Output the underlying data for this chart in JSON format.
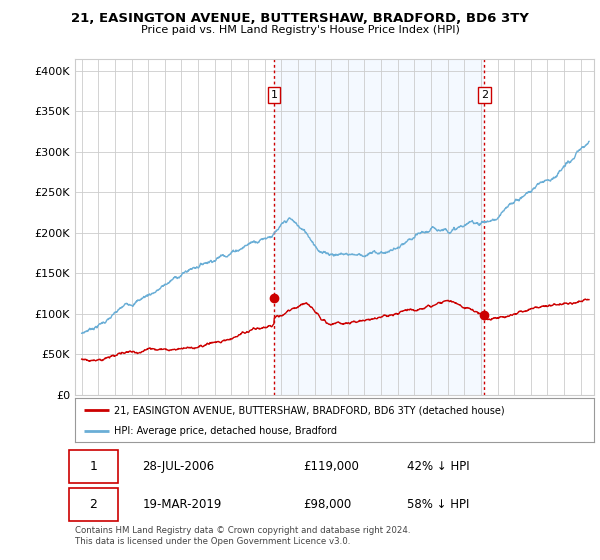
{
  "title1": "21, EASINGTON AVENUE, BUTTERSHAW, BRADFORD, BD6 3TY",
  "title2": "Price paid vs. HM Land Registry's House Price Index (HPI)",
  "ylabel_ticks": [
    "£0",
    "£50K",
    "£100K",
    "£150K",
    "£200K",
    "£250K",
    "£300K",
    "£350K",
    "£400K"
  ],
  "ytick_values": [
    0,
    50000,
    100000,
    150000,
    200000,
    250000,
    300000,
    350000,
    400000
  ],
  "ylim": [
    0,
    415000
  ],
  "xlim_start": 1994.6,
  "xlim_end": 2025.8,
  "sale1": {
    "year": 2006.57,
    "price": 119000,
    "label": "1",
    "hpi_pct": "42% ↓ HPI",
    "date": "28-JUL-2006"
  },
  "sale2": {
    "year": 2019.21,
    "price": 98000,
    "label": "2",
    "hpi_pct": "58% ↓ HPI",
    "date": "19-MAR-2019"
  },
  "vline1_x": 2006.57,
  "vline2_x": 2019.21,
  "legend_line1": "21, EASINGTON AVENUE, BUTTERSHAW, BRADFORD, BD6 3TY (detached house)",
  "legend_line2": "HPI: Average price, detached house, Bradford",
  "footnote": "Contains HM Land Registry data © Crown copyright and database right 2024.\nThis data is licensed under the Open Government Licence v3.0.",
  "table_row1": [
    "1",
    "28-JUL-2006",
    "£119,000",
    "42% ↓ HPI"
  ],
  "table_row2": [
    "2",
    "19-MAR-2019",
    "£98,000",
    "58% ↓ HPI"
  ],
  "red_color": "#cc0000",
  "blue_color": "#6aaed6",
  "blue_fill": "#ddeeff",
  "vline_color": "#cc0000",
  "background_color": "#ffffff",
  "grid_color": "#cccccc",
  "shade_alpha": 0.3
}
